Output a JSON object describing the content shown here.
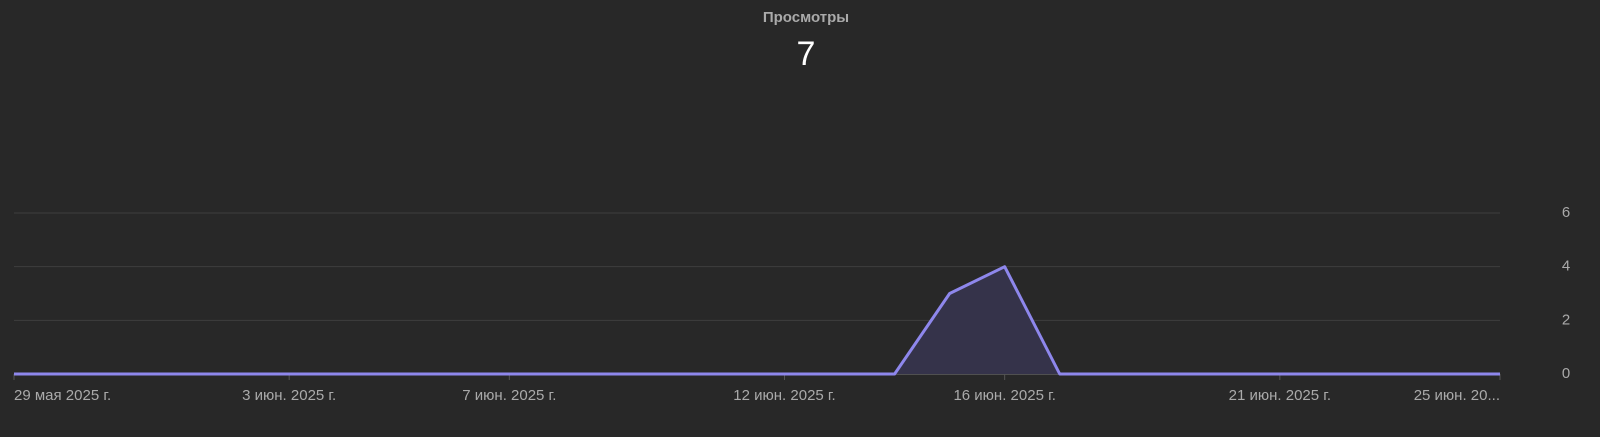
{
  "chart_data": {
    "type": "area",
    "title": "Просмотры",
    "total": 7,
    "categories": [
      "29 мая 2025 г.",
      null,
      null,
      null,
      null,
      "3 июн. 2025 г.",
      null,
      null,
      null,
      "7 июн. 2025 г.",
      null,
      null,
      null,
      null,
      "12 июн. 2025 г.",
      null,
      null,
      null,
      "16 июн. 2025 г.",
      null,
      null,
      null,
      null,
      "21 июн. 2025 г.",
      null,
      null,
      null,
      "25 июн. 20..."
    ],
    "values": [
      0,
      0,
      0,
      0,
      0,
      0,
      0,
      0,
      0,
      0,
      0,
      0,
      0,
      0,
      0,
      0,
      0,
      3,
      4,
      0,
      0,
      0,
      0,
      0,
      0,
      0,
      0,
      0
    ],
    "color": "#8e87ec",
    "area_color": "#35334a",
    "ylim": [
      0,
      6
    ],
    "yticks": [
      0,
      2,
      4,
      6
    ],
    "grid": true
  }
}
